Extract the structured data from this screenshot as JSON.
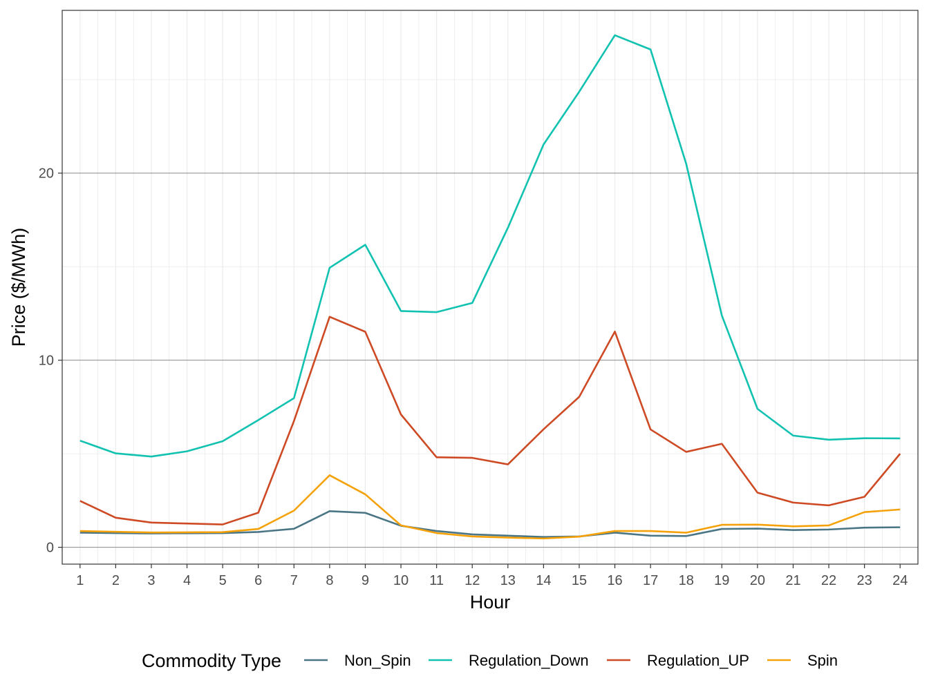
{
  "chart_data": {
    "type": "line",
    "xlabel": "Hour",
    "ylabel": "Price ($/MWh)",
    "x": [
      1,
      2,
      3,
      4,
      5,
      6,
      7,
      8,
      9,
      10,
      11,
      12,
      13,
      14,
      15,
      16,
      17,
      18,
      19,
      20,
      21,
      22,
      23,
      24
    ],
    "xlim": [
      0.5,
      24.5
    ],
    "ylim": [
      -0.9,
      28.7
    ],
    "y_ticks": [
      0,
      10,
      20
    ],
    "grid": true,
    "legend_title": "Commodity Type",
    "legend_position": "bottom",
    "series": [
      {
        "name": "Non_Spin",
        "color": "#4a7585",
        "values": [
          0.78,
          0.76,
          0.74,
          0.75,
          0.76,
          0.82,
          0.99,
          1.93,
          1.84,
          1.15,
          0.87,
          0.69,
          0.62,
          0.55,
          0.58,
          0.78,
          0.62,
          0.6,
          0.98,
          1.0,
          0.92,
          0.95,
          1.05,
          1.07
        ]
      },
      {
        "name": "Regulation_Down",
        "color": "#11c2b0",
        "values": [
          5.7,
          5.02,
          4.85,
          5.13,
          5.67,
          6.8,
          7.97,
          14.94,
          16.17,
          12.63,
          12.57,
          13.06,
          17.08,
          21.53,
          24.35,
          27.37,
          26.61,
          20.5,
          12.39,
          7.4,
          5.97,
          5.75,
          5.83,
          5.82
        ]
      },
      {
        "name": "Regulation_UP",
        "color": "#ce4a24",
        "values": [
          2.48,
          1.58,
          1.32,
          1.27,
          1.22,
          1.85,
          6.75,
          12.32,
          11.52,
          7.1,
          4.81,
          4.78,
          4.43,
          6.31,
          8.04,
          11.53,
          6.3,
          5.1,
          5.53,
          2.92,
          2.39,
          2.24,
          2.7,
          5.0
        ]
      },
      {
        "name": "Spin",
        "color": "#f5a20a",
        "values": [
          0.87,
          0.83,
          0.79,
          0.8,
          0.81,
          0.98,
          1.96,
          3.85,
          2.83,
          1.17,
          0.76,
          0.58,
          0.52,
          0.47,
          0.57,
          0.87,
          0.87,
          0.78,
          1.2,
          1.21,
          1.12,
          1.17,
          1.88,
          2.02
        ]
      }
    ]
  }
}
